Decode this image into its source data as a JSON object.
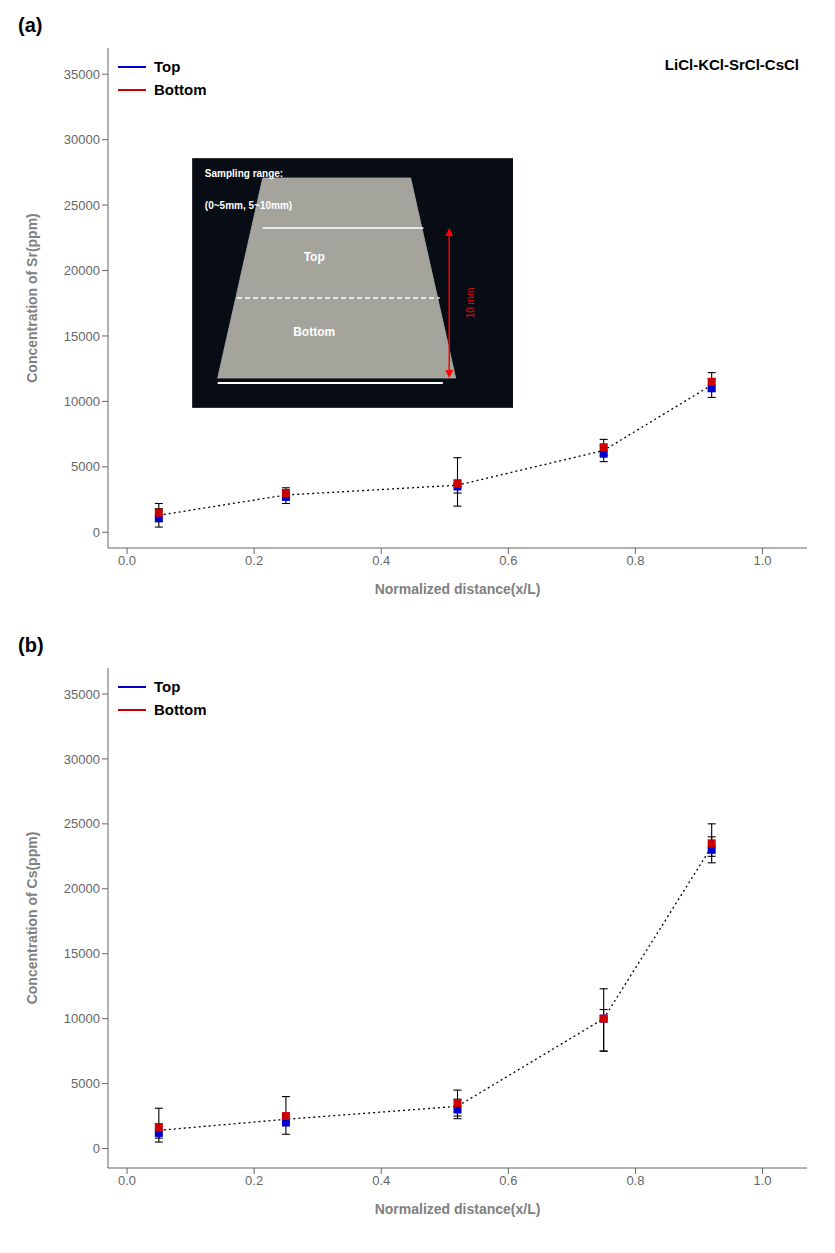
{
  "chart_data": [
    {
      "type": "scatter",
      "title": "(a)",
      "annotation": "LiCl-KCl-SrCl-CsCl",
      "xlabel": "Normalized distance(x/L)",
      "ylabel": "Concentration of Sr(ppm)",
      "x": [
        0.05,
        0.25,
        0.52,
        0.75,
        0.92
      ],
      "series": [
        {
          "type": "line",
          "line_style": "dotted",
          "color": "#000000",
          "values": [
            1300,
            2850,
            3600,
            6250,
            11250
          ]
        },
        {
          "name": "Top",
          "color": "#0000cc",
          "marker": "square",
          "values": [
            1100,
            2700,
            3500,
            6000,
            11000
          ],
          "yerr_minus": [
            700,
            500,
            1500,
            600,
            700
          ],
          "yerr_plus": [
            700,
            500,
            500,
            600,
            700
          ]
        },
        {
          "name": "Bottom",
          "color": "#cc0000",
          "marker": "square",
          "values": [
            1500,
            3000,
            3700,
            6500,
            11500
          ],
          "yerr_minus": [
            700,
            400,
            700,
            600,
            700
          ],
          "yerr_plus": [
            700,
            400,
            2000,
            600,
            700
          ]
        }
      ],
      "xlim": [
        -0.03,
        1.07
      ],
      "ylim": [
        -1200,
        37000
      ],
      "xticks": [
        {
          "value": 0,
          "label": "0.0"
        },
        0.2,
        0.4,
        0.6,
        0.8,
        {
          "value": 1,
          "label": "1.0"
        }
      ],
      "yticks": [
        0,
        5000,
        10000,
        15000,
        20000,
        25000,
        30000,
        35000
      ],
      "grid": false,
      "legend": "upper left",
      "inset": {
        "text": [
          "Sampling range:",
          "(0~5mm, 5~10mm)"
        ],
        "label_top": "Top",
        "label_bottom": "Bottom",
        "arrow_label": "10 mm"
      }
    },
    {
      "type": "scatter",
      "title": "(b)",
      "xlabel": "Normalized distance(x/L)",
      "ylabel": "Concentration of Cs(ppm)",
      "x": [
        0.05,
        0.25,
        0.52,
        0.75,
        0.92
      ],
      "series": [
        {
          "type": "line",
          "line_style": "dotted",
          "color": "#000000",
          "values": [
            1400,
            2250,
            3250,
            10000,
            23250
          ]
        },
        {
          "name": "Top",
          "color": "#0000cc",
          "marker": "square",
          "values": [
            1200,
            2000,
            3000,
            10000,
            23000
          ],
          "yerr_minus": [
            700,
            900,
            700,
            2500,
            1000
          ],
          "yerr_plus": [
            700,
            500,
            800,
            700,
            1000
          ]
        },
        {
          "name": "Bottom",
          "color": "#cc0000",
          "marker": "square",
          "values": [
            1600,
            2500,
            3500,
            10000,
            23500
          ],
          "yerr_minus": [
            800,
            500,
            1000,
            2500,
            1000
          ],
          "yerr_plus": [
            1500,
            1500,
            1000,
            2300,
            1500
          ]
        }
      ],
      "xlim": [
        -0.03,
        1.07
      ],
      "ylim": [
        -1500,
        37000
      ],
      "xticks": [
        {
          "value": 0,
          "label": "0.0"
        },
        0.2,
        0.4,
        0.6,
        0.8,
        {
          "value": 1,
          "label": "1.0"
        }
      ],
      "yticks": [
        0,
        5000,
        10000,
        15000,
        20000,
        25000,
        30000,
        35000
      ],
      "grid": false,
      "legend": "upper left"
    }
  ]
}
